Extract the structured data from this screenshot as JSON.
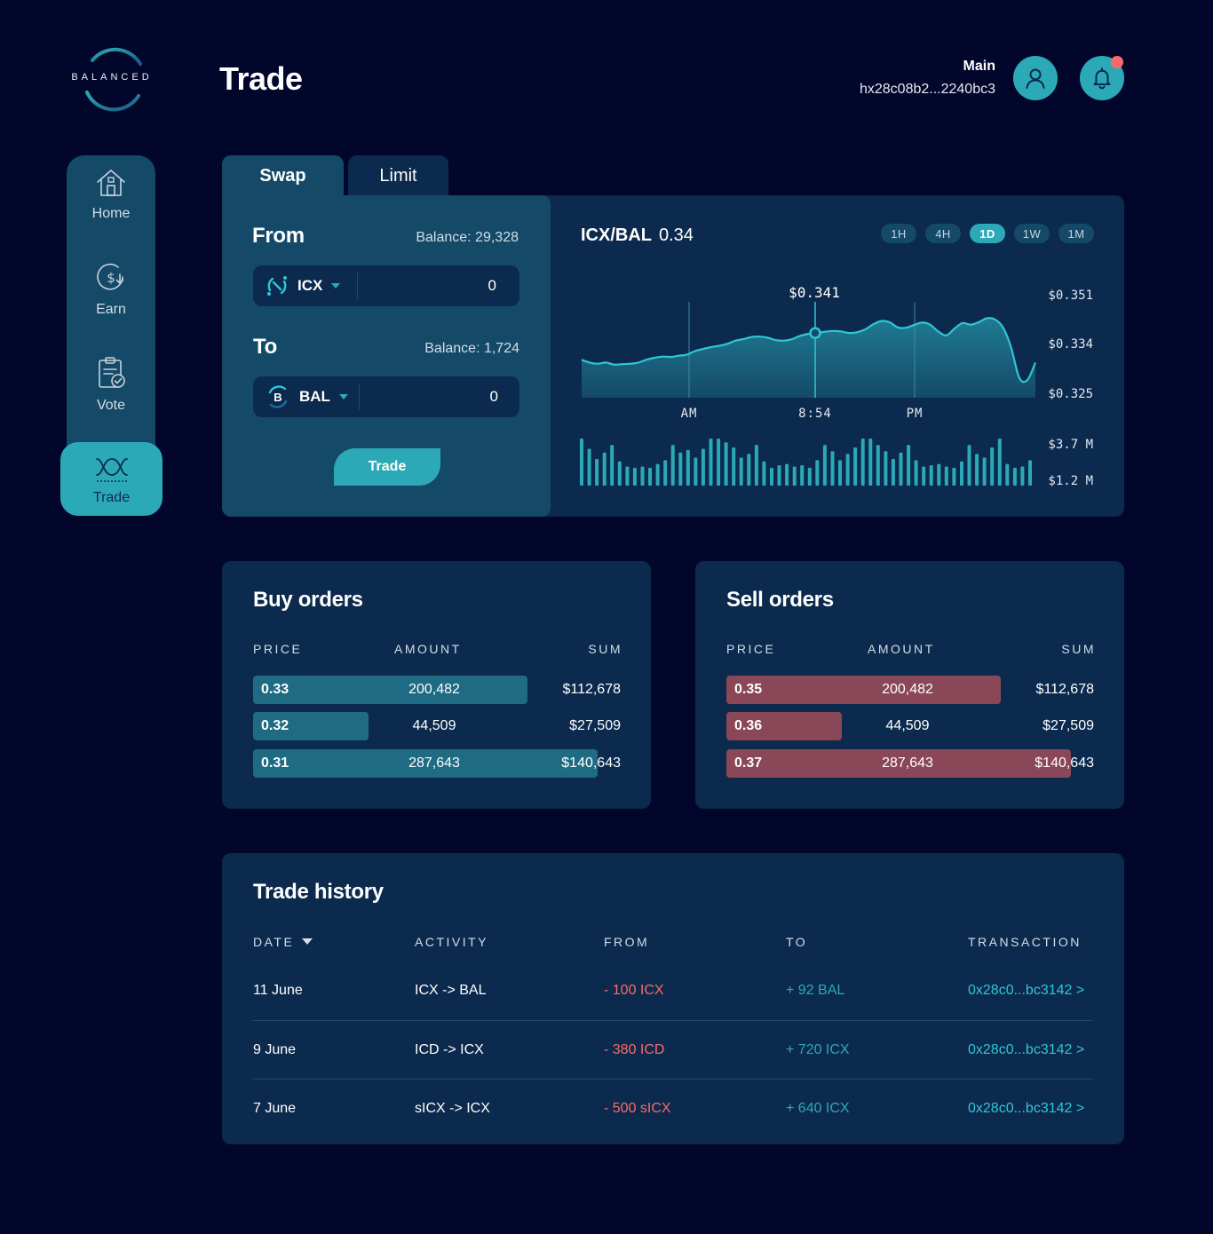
{
  "brand": {
    "logo_text": "BALANCED"
  },
  "page": {
    "title": "Trade"
  },
  "wallet": {
    "label": "Main",
    "address": "hx28c08b2...2240bc3"
  },
  "colors": {
    "background": "#03062b",
    "card": "#0c2a4d",
    "card_light": "#144a68",
    "accent": "#2ca9b7",
    "buy_bar": "#1e6b83",
    "sell_bar": "#8a4757",
    "negative": "#fb6a6a",
    "notification": "#fb6a6a"
  },
  "sidebar": {
    "items": [
      {
        "label": "Home",
        "icon": "home-icon"
      },
      {
        "label": "Earn",
        "icon": "dollar-coin-icon"
      },
      {
        "label": "Vote",
        "icon": "clipboard-check-icon"
      },
      {
        "label": "Trade",
        "icon": "trade-wave-icon",
        "active": true
      }
    ]
  },
  "tabs": [
    {
      "label": "Swap",
      "active": true
    },
    {
      "label": "Limit",
      "active": false
    }
  ],
  "swap": {
    "from": {
      "label": "From",
      "balance": "Balance: 29,328",
      "token": "ICX",
      "value": "0"
    },
    "to": {
      "label": "To",
      "balance": "Balance: 1,724",
      "token": "BAL",
      "value": "0"
    },
    "button_label": "Trade"
  },
  "chart": {
    "pair": "ICX/BAL",
    "price": "0.34",
    "ranges": [
      {
        "label": "1H",
        "active": false
      },
      {
        "label": "4H",
        "active": false
      },
      {
        "label": "1D",
        "active": true
      },
      {
        "label": "1W",
        "active": false
      },
      {
        "label": "1M",
        "active": false
      }
    ]
  },
  "chart_data": {
    "type": "area",
    "title": "",
    "x_ticks": [
      "AM",
      "8:54",
      "PM"
    ],
    "y_ticks": [
      "$0.351",
      "$0.334",
      "$0.325"
    ],
    "ylim": [
      0.325,
      0.351
    ],
    "hover_value": "$0.341",
    "hover_x": "8:54",
    "price_series": [
      0.3345,
      0.3338,
      0.3335,
      0.3338,
      0.3333,
      0.3334,
      0.3335,
      0.3338,
      0.3345,
      0.335,
      0.3353,
      0.3352,
      0.3355,
      0.3358,
      0.3367,
      0.3372,
      0.3377,
      0.338,
      0.3385,
      0.3393,
      0.3397,
      0.3402,
      0.3403,
      0.34,
      0.3394,
      0.3393,
      0.3397,
      0.3405,
      0.341,
      0.3412,
      0.3415,
      0.3417,
      0.3416,
      0.3412,
      0.3414,
      0.3421,
      0.3434,
      0.3442,
      0.3439,
      0.3426,
      0.3425,
      0.3432,
      0.3438,
      0.3433,
      0.3416,
      0.3406,
      0.3423,
      0.3437,
      0.3433,
      0.3439,
      0.3449,
      0.3446,
      0.3426,
      0.3376,
      0.33,
      0.3294,
      0.3338
    ],
    "volume_y_ticks": [
      "$3.7 M",
      "$1.2 M"
    ],
    "volume_ylim": [
      0,
      3.7
    ],
    "volume_series": [
      3.7,
      2.9,
      2.1,
      2.6,
      3.2,
      1.9,
      1.5,
      1.4,
      1.5,
      1.4,
      1.7,
      2.0,
      3.2,
      2.6,
      2.8,
      2.2,
      2.9,
      3.7,
      3.7,
      3.4,
      3.0,
      2.2,
      2.5,
      3.2,
      1.9,
      1.4,
      1.6,
      1.7,
      1.5,
      1.6,
      1.4,
      2.0,
      3.2,
      2.7,
      2.0,
      2.5,
      3.0,
      3.7,
      3.7,
      3.2,
      2.7,
      2.1,
      2.6,
      3.2,
      2.0,
      1.5,
      1.6,
      1.7,
      1.5,
      1.4,
      1.9,
      3.2,
      2.5,
      2.2,
      3.0,
      3.7,
      1.7,
      1.4,
      1.5,
      2.0
    ]
  },
  "buy_orders": {
    "title": "Buy orders",
    "headers": {
      "price": "PRICE",
      "amount": "AMOUNT",
      "sum": "SUM"
    },
    "rows": [
      {
        "price": "0.33",
        "amount": "200,482",
        "sum": "$112,678",
        "depth": 0.747
      },
      {
        "price": "0.32",
        "amount": "44,509",
        "sum": "$27,509",
        "depth": 0.314
      },
      {
        "price": "0.31",
        "amount": "287,643",
        "sum": "$140,643",
        "depth": 0.937
      }
    ]
  },
  "sell_orders": {
    "title": "Sell orders",
    "headers": {
      "price": "PRICE",
      "amount": "AMOUNT",
      "sum": "SUM"
    },
    "rows": [
      {
        "price": "0.35",
        "amount": "200,482",
        "sum": "$112,678",
        "depth": 0.747
      },
      {
        "price": "0.36",
        "amount": "44,509",
        "sum": "$27,509",
        "depth": 0.314
      },
      {
        "price": "0.37",
        "amount": "287,643",
        "sum": "$140,643",
        "depth": 0.937
      }
    ]
  },
  "history": {
    "title": "Trade history",
    "headers": {
      "date": "DATE",
      "activity": "ACTIVITY",
      "from": "FROM",
      "to": "TO",
      "transaction": "TRANSACTION"
    },
    "rows": [
      {
        "date": "11 June",
        "activity": "ICX -> BAL",
        "from": "- 100 ICX",
        "to": "+ 92 BAL",
        "transaction": "0x28c0...bc3142 >"
      },
      {
        "date": "9 June",
        "activity": "ICD -> ICX",
        "from": "- 380 ICD",
        "to": "+ 720 ICX",
        "transaction": "0x28c0...bc3142 >"
      },
      {
        "date": "7 June",
        "activity": "sICX -> ICX",
        "from": "- 500 sICX",
        "to": "+ 640 ICX",
        "transaction": "0x28c0...bc3142 >"
      }
    ]
  }
}
